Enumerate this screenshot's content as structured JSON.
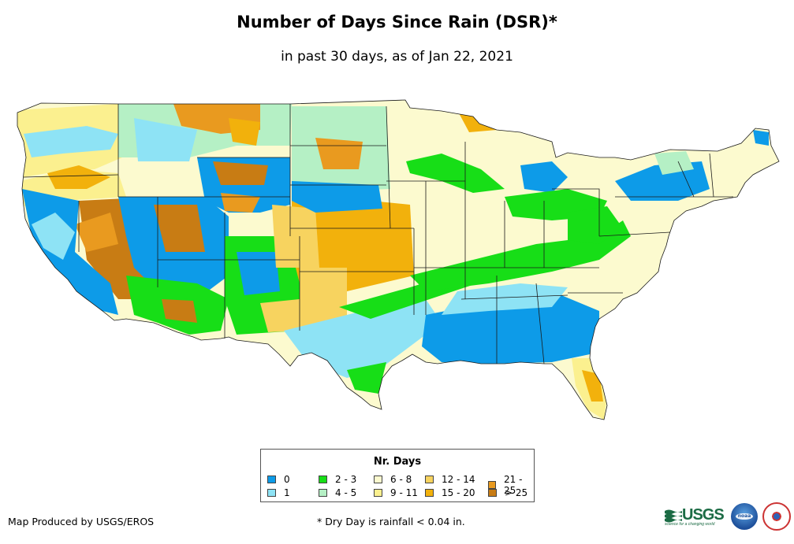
{
  "title": "Number of Days Since Rain (DSR)*",
  "subtitle": "in past 30 days, as of Jan 22, 2021",
  "legend": {
    "title": "Nr. Days",
    "items": [
      {
        "label": "0",
        "color": "#0d9be8"
      },
      {
        "label": "1",
        "color": "#8ee3f5"
      },
      {
        "label": "2 - 3",
        "color": "#17de17"
      },
      {
        "label": "4 - 5",
        "color": "#b5f0c5"
      },
      {
        "label": "6 - 8",
        "color": "#fcfacf"
      },
      {
        "label": "9 - 11",
        "color": "#fbf08f"
      },
      {
        "label": "12 - 14",
        "color": "#f7d35f"
      },
      {
        "label": "15 - 20",
        "color": "#f2b10c"
      },
      {
        "label": "21 - 25",
        "color": "#e99a1f"
      },
      {
        "label": "> 25",
        "color": "#c87c14"
      }
    ]
  },
  "credit": "Map Produced by USGS/EROS",
  "footnote": "* Dry Day is rainfall < 0.04 in.",
  "logos": {
    "usgs": "USGS",
    "usgs_tagline": "science for a changing world",
    "noaa": "noaa",
    "nws_icon": "national-weather-service-emblem"
  }
}
